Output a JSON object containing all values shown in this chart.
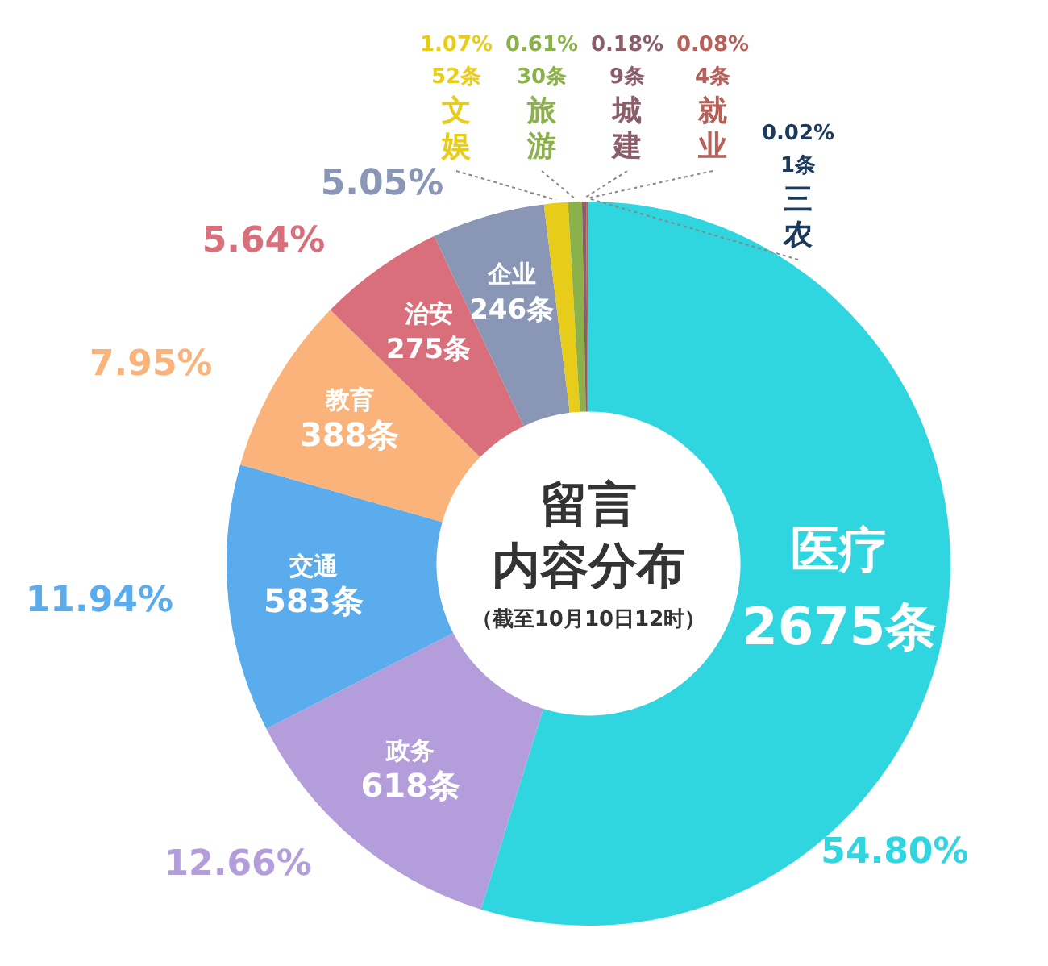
{
  "chart_data": {
    "type": "donut",
    "title": "留言内容分布",
    "subtitle": "（截至10月10日12时）",
    "categories": [
      "医疗",
      "政务",
      "交通",
      "教育",
      "治安",
      "企业",
      "文娱",
      "旅游",
      "城建",
      "就业",
      "三农"
    ],
    "values": [
      2675,
      618,
      583,
      388,
      275,
      246,
      52,
      30,
      9,
      4,
      1
    ],
    "colors": [
      "#2fd6df",
      "#b39ddb",
      "#5aacec",
      "#f9b37b",
      "#d96f7a",
      "#8996b5",
      "#e8cc1a",
      "#8bb24a",
      "#8b5e6a",
      "#b5615a",
      "#1b3a5c"
    ],
    "value_labels": [
      "2675条",
      "618条",
      "583条",
      "388条",
      "275条",
      "246条",
      "52条",
      "30条",
      "9条",
      "4条",
      "1条"
    ],
    "annotations": [
      {
        "text": "54.80%",
        "x": "医疗"
      },
      {
        "text": "12.66%",
        "x": "政务"
      },
      {
        "text": "11.94%",
        "x": "交通"
      },
      {
        "text": "7.95%",
        "x": "教育"
      },
      {
        "text": "5.64%",
        "x": "治安"
      },
      {
        "text": "5.05%",
        "x": "企业"
      },
      {
        "text": "1.07%",
        "x": "文娱"
      },
      {
        "text": "0.61%",
        "x": "旅游"
      },
      {
        "text": "0.18%",
        "x": "城建"
      },
      {
        "text": "0.08%",
        "x": "就业"
      },
      {
        "text": "0.02%",
        "x": "三农"
      }
    ],
    "legend": false
  }
}
